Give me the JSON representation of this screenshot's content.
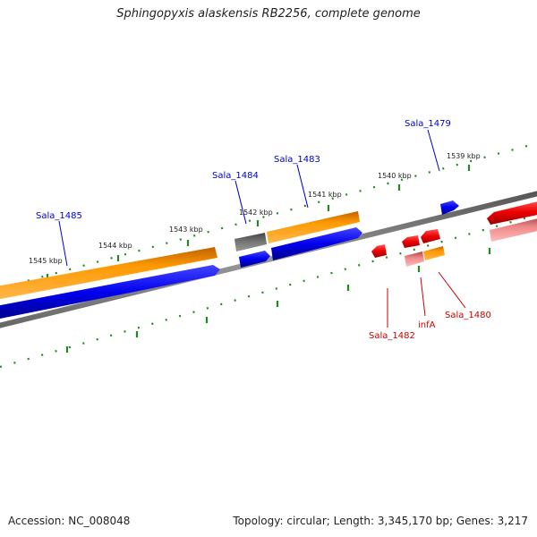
{
  "title": "Sphingopyxis alaskensis RB2256, complete genome",
  "accession_text": "Accession: NC_008048",
  "stats_text": "Topology: circular; Length: 3,345,170 bp; Genes: 3,217",
  "kbp_labels": [
    "1545 kbp",
    "1544 kbp",
    "1543 kbp",
    "1542 kbp",
    "1541 kbp",
    "1540 kbp",
    "1539 kbp"
  ],
  "gene_labels": {
    "forward": [
      "Sala_1485",
      "Sala_1484",
      "Sala_1483",
      "Sala_1479"
    ],
    "reverse": [
      "Sala_1482",
      "infA",
      "Sala_1480"
    ]
  },
  "colors": {
    "forward_cds": "#0000ee",
    "forward_gene": "#ff9900",
    "reverse_cds": "#ee0000",
    "reverse_gene": "#ee8888",
    "pseudo": "#666666",
    "backbone": "#888888",
    "ticks": "#228822"
  }
}
